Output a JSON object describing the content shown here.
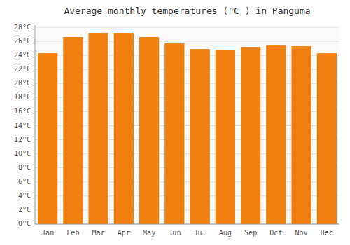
{
  "chart_data": {
    "type": "bar",
    "title": "Average monthly temperatures (°C ) in Panguma",
    "categories": [
      "Jan",
      "Feb",
      "Mar",
      "Apr",
      "May",
      "Jun",
      "Jul",
      "Aug",
      "Sep",
      "Oct",
      "Nov",
      "Dec"
    ],
    "values": [
      24.3,
      26.6,
      27.2,
      27.2,
      26.6,
      25.7,
      24.9,
      24.8,
      25.2,
      25.4,
      25.3,
      24.3
    ],
    "color": "#F08010",
    "ylim": [
      0,
      28.3
    ],
    "yticks": [
      {
        "value": 0,
        "label": "0°C"
      },
      {
        "value": 2,
        "label": "2°C"
      },
      {
        "value": 4,
        "label": "4°C"
      },
      {
        "value": 6,
        "label": "6°C"
      },
      {
        "value": 8,
        "label": "8°C"
      },
      {
        "value": 10,
        "label": "10°C"
      },
      {
        "value": 12,
        "label": "12°C"
      },
      {
        "value": 14,
        "label": "14°C"
      },
      {
        "value": 16,
        "label": "16°C"
      },
      {
        "value": 18,
        "label": "18°C"
      },
      {
        "value": 20,
        "label": "20°C"
      },
      {
        "value": 22,
        "label": "22°C"
      },
      {
        "value": 24,
        "label": "24°C"
      },
      {
        "value": 26,
        "label": "26°C"
      },
      {
        "value": 28,
        "label": "28°C"
      }
    ],
    "grid": true
  }
}
